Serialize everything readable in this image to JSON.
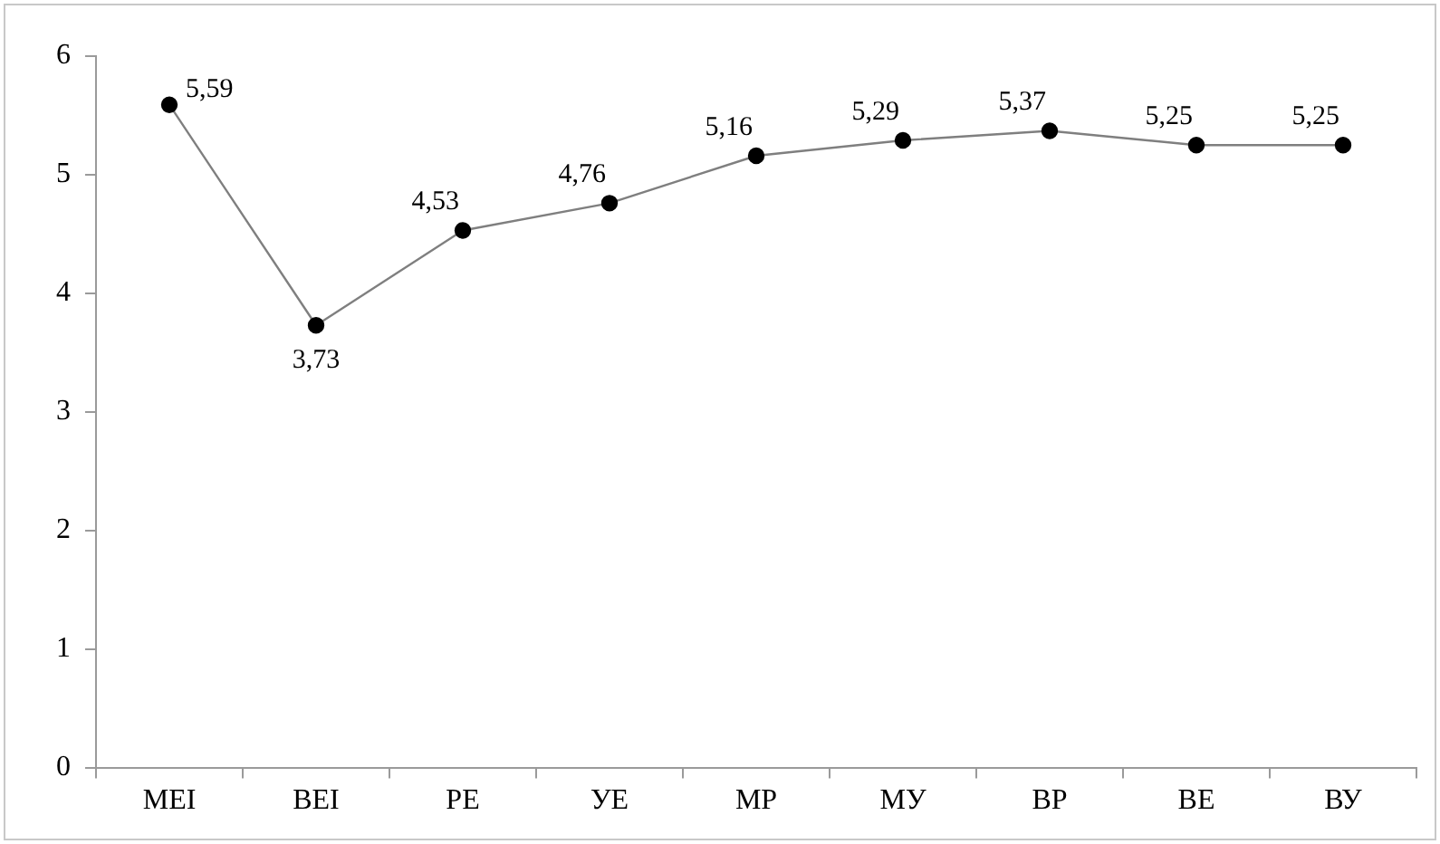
{
  "chart_data": {
    "type": "line",
    "categories": [
      "МЕІ",
      "ВЕІ",
      "РЕ",
      "УЕ",
      "МР",
      "МУ",
      "ВР",
      "ВЕ",
      "ВУ"
    ],
    "series": [
      {
        "color": "#000000",
        "values": [
          5.59,
          3.73,
          4.53,
          4.76,
          5.16,
          5.29,
          5.37,
          5.25,
          5.25
        ],
        "value_labels": [
          "5,59",
          "3,73",
          "4,53",
          "4,76",
          "5,16",
          "5,29",
          "5,37",
          "5,25",
          "5,25"
        ]
      }
    ],
    "ylim": [
      0,
      6
    ],
    "yticks": [
      0,
      1,
      2,
      3,
      4,
      5,
      6
    ],
    "grid": false,
    "legend": false,
    "marker": "circle",
    "line_style": "solid"
  }
}
